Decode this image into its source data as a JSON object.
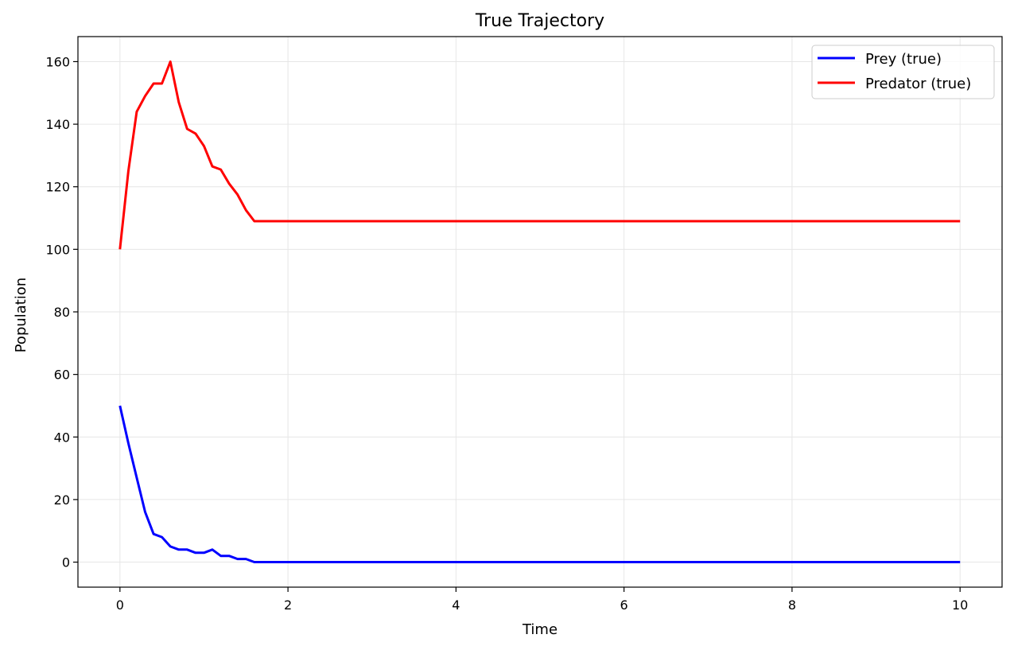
{
  "chart_data": {
    "type": "line",
    "title": "True Trajectory",
    "xlabel": "Time",
    "ylabel": "Population",
    "xlim": [
      -0.5,
      10.5
    ],
    "ylim": [
      -8,
      168
    ],
    "xticks": [
      0,
      2,
      4,
      6,
      8,
      10
    ],
    "yticks": [
      0,
      20,
      40,
      60,
      80,
      100,
      120,
      140,
      160
    ],
    "grid": true,
    "legend_position": "top-right",
    "series": [
      {
        "name": "Prey (true)",
        "color": "#0000ff",
        "x": [
          0,
          0.1,
          0.2,
          0.3,
          0.4,
          0.5,
          0.6,
          0.7,
          0.8,
          0.9,
          1.0,
          1.1,
          1.2,
          1.3,
          1.4,
          1.5,
          1.6,
          1.7,
          10
        ],
        "y": [
          50,
          38,
          27,
          16,
          9,
          8,
          5,
          4,
          4,
          3,
          3,
          4,
          2,
          2,
          1,
          1,
          0,
          0,
          0
        ]
      },
      {
        "name": "Predator (true)",
        "color": "#ff0000",
        "x": [
          0,
          0.1,
          0.2,
          0.3,
          0.4,
          0.5,
          0.6,
          0.7,
          0.8,
          0.9,
          1.0,
          1.1,
          1.2,
          1.3,
          1.4,
          1.5,
          1.6,
          1.7,
          10
        ],
        "y": [
          100,
          125,
          144,
          149,
          153,
          153,
          160,
          147,
          138.5,
          137,
          133,
          126.5,
          125.5,
          121,
          117.5,
          112.5,
          109,
          109,
          109
        ]
      }
    ]
  }
}
